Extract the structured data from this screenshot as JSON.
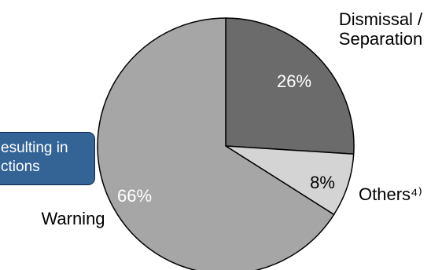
{
  "chart_data": {
    "type": "pie",
    "slices": [
      {
        "label": "Dismissal /\nSeparation",
        "value": 26,
        "value_label": "26%",
        "color": "#6b6b6b",
        "text_color": "#ffffff"
      },
      {
        "label": "Others⁴⁾",
        "value": 8,
        "value_label": "8%",
        "color": "#d4d4d4",
        "text_color": "#000000"
      },
      {
        "label": "Warning",
        "value": 66,
        "value_label": "66%",
        "color": "#a6a6a6",
        "text_color": "#ffffff"
      }
    ],
    "start_angle_deg": 0,
    "direction": "clockwise",
    "outline_color": "#000000"
  },
  "callout": {
    "text": "esulting in\nctions",
    "background": "#346496"
  }
}
